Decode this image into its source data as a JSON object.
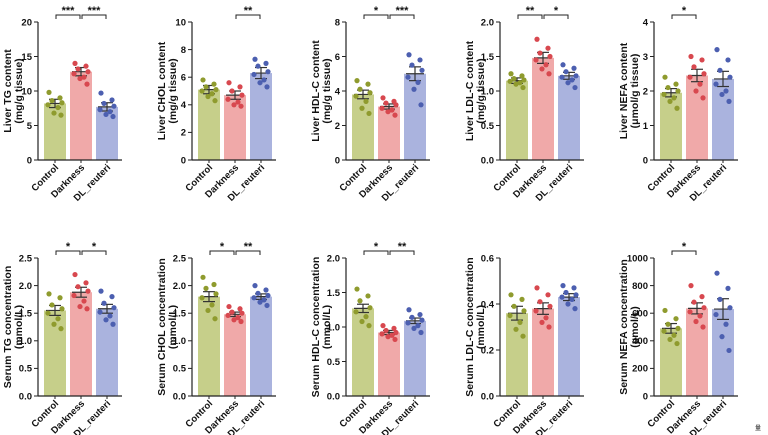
{
  "figure": {
    "corner_mark": "量"
  },
  "chart_data": [
    {
      "type": "bar",
      "ylabel_lines": [
        "Liver TG content",
        "(mg/g tissue)"
      ],
      "ylim": [
        0,
        20
      ],
      "yticks": [
        "0",
        "5",
        "10",
        "15",
        "20"
      ],
      "categories": [
        "Control",
        "Darkness",
        "DL_reuteri"
      ],
      "colors": [
        "#c6cf8a",
        "#f0a9a9",
        "#aab3de"
      ],
      "dot_colors": [
        "#8f9b2e",
        "#d8484f",
        "#4c5fb0"
      ],
      "values": [
        8.2,
        12.8,
        7.7
      ],
      "errors": [
        0.6,
        0.6,
        0.6
      ],
      "points": [
        [
          9.8,
          9.0,
          8.6,
          8.3,
          8.0,
          7.6,
          6.8,
          6.5
        ],
        [
          14.0,
          13.6,
          13.2,
          12.8,
          12.5,
          12.0,
          11.8,
          11.0
        ],
        [
          9.7,
          8.7,
          8.2,
          7.8,
          7.3,
          7.0,
          6.6,
          6.3
        ]
      ],
      "significance": [
        {
          "from": 0,
          "to": 1,
          "label": "***"
        },
        {
          "from": 1,
          "to": 2,
          "label": "***"
        }
      ]
    },
    {
      "type": "bar",
      "ylabel_lines": [
        "Liver CHOL content",
        "(mg/g tissue)"
      ],
      "ylim": [
        0,
        10
      ],
      "yticks": [
        "0",
        "2",
        "4",
        "6",
        "8",
        "10"
      ],
      "categories": [
        "Control",
        "Darkness",
        "DL_reuteri"
      ],
      "colors": [
        "#c6cf8a",
        "#f0a9a9",
        "#aab3de"
      ],
      "dot_colors": [
        "#8f9b2e",
        "#d8484f",
        "#4c5fb0"
      ],
      "values": [
        5.1,
        4.7,
        6.3
      ],
      "errors": [
        0.3,
        0.3,
        0.4
      ],
      "points": [
        [
          5.8,
          5.5,
          5.3,
          5.1,
          5.0,
          4.8,
          4.6,
          4.3
        ],
        [
          5.6,
          5.3,
          5.0,
          4.7,
          4.4,
          4.2,
          4.0,
          3.9
        ],
        [
          7.3,
          7.0,
          6.8,
          6.4,
          6.2,
          5.8,
          5.6,
          5.3
        ]
      ],
      "significance": [
        {
          "from": 1,
          "to": 2,
          "label": "**"
        }
      ]
    },
    {
      "type": "bar",
      "ylabel_lines": [
        "Liver HDL-C content",
        "(mg/g tissue)"
      ],
      "ylim": [
        0,
        8
      ],
      "yticks": [
        "0",
        "2",
        "4",
        "6",
        "8"
      ],
      "categories": [
        "Control",
        "Darkness",
        "DL_reuteri"
      ],
      "colors": [
        "#c6cf8a",
        "#f0a9a9",
        "#aab3de"
      ],
      "dot_colors": [
        "#8f9b2e",
        "#d8484f",
        "#4c5fb0"
      ],
      "values": [
        3.8,
        3.1,
        5.0
      ],
      "errors": [
        0.25,
        0.15,
        0.4
      ],
      "points": [
        [
          4.6,
          4.4,
          4.1,
          3.9,
          3.7,
          3.4,
          3.0,
          2.7
        ],
        [
          3.6,
          3.4,
          3.3,
          3.2,
          3.0,
          2.9,
          2.8,
          2.6
        ],
        [
          6.1,
          5.8,
          5.5,
          5.2,
          4.8,
          4.5,
          4.1,
          3.2
        ]
      ],
      "significance": [
        {
          "from": 0,
          "to": 1,
          "label": "*"
        },
        {
          "from": 1,
          "to": 2,
          "label": "***"
        }
      ]
    },
    {
      "type": "bar",
      "ylabel_lines": [
        "Liver LDL-C content",
        "(mg/g tissue)"
      ],
      "ylim": [
        0.0,
        2.0
      ],
      "yticks": [
        "0.0",
        "0.5",
        "1.0",
        "1.5",
        "2.0"
      ],
      "categories": [
        "Control",
        "Darkness",
        "DL_reuteri"
      ],
      "colors": [
        "#c6cf8a",
        "#f0a9a9",
        "#aab3de"
      ],
      "dot_colors": [
        "#8f9b2e",
        "#d8484f",
        "#4c5fb0"
      ],
      "values": [
        1.15,
        1.48,
        1.22
      ],
      "errors": [
        0.04,
        0.08,
        0.05
      ],
      "points": [
        [
          1.25,
          1.22,
          1.18,
          1.16,
          1.14,
          1.12,
          1.1,
          1.05
        ],
        [
          1.75,
          1.62,
          1.55,
          1.5,
          1.45,
          1.38,
          1.32,
          1.25
        ],
        [
          1.38,
          1.33,
          1.28,
          1.22,
          1.2,
          1.16,
          1.12,
          1.05
        ]
      ],
      "significance": [
        {
          "from": 0,
          "to": 1,
          "label": "**"
        },
        {
          "from": 1,
          "to": 2,
          "label": "*"
        }
      ]
    },
    {
      "type": "bar",
      "ylabel_lines": [
        "Liver NEFA content",
        "(μmol/g tissue)"
      ],
      "ylim": [
        0,
        4
      ],
      "yticks": [
        "0",
        "1",
        "2",
        "3",
        "4"
      ],
      "categories": [
        "Control",
        "Darkness",
        "DL_reuteri"
      ],
      "colors": [
        "#c6cf8a",
        "#f0a9a9",
        "#aab3de"
      ],
      "dot_colors": [
        "#8f9b2e",
        "#d8484f",
        "#4c5fb0"
      ],
      "values": [
        1.95,
        2.45,
        2.35
      ],
      "errors": [
        0.12,
        0.18,
        0.22
      ],
      "points": [
        [
          2.4,
          2.2,
          2.1,
          2.0,
          1.9,
          1.8,
          1.7,
          1.5
        ],
        [
          3.0,
          2.9,
          2.7,
          2.5,
          2.4,
          2.2,
          2.0,
          1.8
        ],
        [
          3.2,
          2.9,
          2.6,
          2.4,
          2.2,
          2.0,
          1.9,
          1.7
        ]
      ],
      "significance": [
        {
          "from": 0,
          "to": 1,
          "label": "*"
        }
      ]
    },
    {
      "type": "bar",
      "ylabel_lines": [
        "Serum TG concentration",
        "(mmol/L)"
      ],
      "ylim": [
        0.0,
        2.5
      ],
      "yticks": [
        "0.0",
        "0.5",
        "1.0",
        "1.5",
        "2.0",
        "2.5"
      ],
      "categories": [
        "Control",
        "Darkness",
        "DL_reuteri"
      ],
      "colors": [
        "#c6cf8a",
        "#f0a9a9",
        "#aab3de"
      ],
      "dot_colors": [
        "#8f9b2e",
        "#d8484f",
        "#4c5fb0"
      ],
      "values": [
        1.55,
        1.88,
        1.58
      ],
      "errors": [
        0.09,
        0.09,
        0.08
      ],
      "points": [
        [
          1.85,
          1.78,
          1.65,
          1.58,
          1.5,
          1.4,
          1.3,
          1.22
        ],
        [
          2.2,
          2.05,
          1.98,
          1.9,
          1.82,
          1.72,
          1.62,
          1.58
        ],
        [
          1.9,
          1.8,
          1.68,
          1.6,
          1.52,
          1.45,
          1.38,
          1.3
        ]
      ],
      "significance": [
        {
          "from": 0,
          "to": 1,
          "label": "*"
        },
        {
          "from": 1,
          "to": 2,
          "label": "*"
        }
      ]
    },
    {
      "type": "bar",
      "ylabel_lines": [
        "Serum CHOL concentration",
        "(mmol/L)"
      ],
      "ylim": [
        0.0,
        2.5
      ],
      "yticks": [
        "0.0",
        "0.5",
        "1.0",
        "1.5",
        "2.0",
        "2.5"
      ],
      "categories": [
        "Control",
        "Darkness",
        "DL_reuteri"
      ],
      "colors": [
        "#c6cf8a",
        "#f0a9a9",
        "#aab3de"
      ],
      "dot_colors": [
        "#8f9b2e",
        "#d8484f",
        "#4c5fb0"
      ],
      "values": [
        1.8,
        1.48,
        1.8
      ],
      "errors": [
        0.09,
        0.04,
        0.05
      ],
      "points": [
        [
          2.15,
          2.02,
          1.95,
          1.85,
          1.78,
          1.65,
          1.55,
          1.4
        ],
        [
          1.62,
          1.58,
          1.52,
          1.5,
          1.46,
          1.42,
          1.38,
          1.35
        ],
        [
          2.0,
          1.92,
          1.86,
          1.82,
          1.78,
          1.74,
          1.7,
          1.64
        ]
      ],
      "significance": [
        {
          "from": 0,
          "to": 1,
          "label": "*"
        },
        {
          "from": 1,
          "to": 2,
          "label": "**"
        }
      ]
    },
    {
      "type": "bar",
      "ylabel_lines": [
        "Serum HDL-C concentration",
        "(mmol/L)"
      ],
      "ylim": [
        0.0,
        2.0
      ],
      "yticks": [
        "0.0",
        "0.5",
        "1.0",
        "1.5",
        "2.0"
      ],
      "categories": [
        "Control",
        "Darkness",
        "DL_reuteri"
      ],
      "colors": [
        "#c6cf8a",
        "#f0a9a9",
        "#aab3de"
      ],
      "dot_colors": [
        "#8f9b2e",
        "#d8484f",
        "#4c5fb0"
      ],
      "values": [
        1.27,
        0.92,
        1.09
      ],
      "errors": [
        0.06,
        0.03,
        0.04
      ],
      "points": [
        [
          1.55,
          1.45,
          1.38,
          1.28,
          1.22,
          1.15,
          1.08,
          1.02
        ],
        [
          1.02,
          0.98,
          0.95,
          0.92,
          0.9,
          0.88,
          0.86,
          0.82
        ],
        [
          1.25,
          1.18,
          1.14,
          1.1,
          1.06,
          1.02,
          0.98,
          0.92
        ]
      ],
      "significance": [
        {
          "from": 0,
          "to": 1,
          "label": "*"
        },
        {
          "from": 1,
          "to": 2,
          "label": "**"
        }
      ]
    },
    {
      "type": "bar",
      "ylabel_lines": [
        "Serum LDL-C concentration",
        "(mmol/L)"
      ],
      "ylim": [
        0.0,
        0.6
      ],
      "yticks": [
        "0.0",
        "0.2",
        "0.4",
        "0.6"
      ],
      "categories": [
        "Control",
        "Darkness",
        "DL_reuteri"
      ],
      "colors": [
        "#c6cf8a",
        "#f0a9a9",
        "#aab3de"
      ],
      "dot_colors": [
        "#8f9b2e",
        "#d8484f",
        "#4c5fb0"
      ],
      "values": [
        0.36,
        0.38,
        0.43
      ],
      "errors": [
        0.03,
        0.025,
        0.015
      ],
      "points": [
        [
          0.44,
          0.42,
          0.39,
          0.37,
          0.35,
          0.32,
          0.29,
          0.26
        ],
        [
          0.47,
          0.44,
          0.41,
          0.39,
          0.37,
          0.34,
          0.32,
          0.3
        ],
        [
          0.48,
          0.47,
          0.45,
          0.44,
          0.43,
          0.42,
          0.4,
          0.38
        ]
      ],
      "significance": []
    },
    {
      "type": "bar",
      "ylabel_lines": [
        "Serum NEFA concentration",
        "(μmol/L)"
      ],
      "ylim": [
        0,
        1000
      ],
      "yticks": [
        "0",
        "200",
        "400",
        "600",
        "800",
        "1000"
      ],
      "categories": [
        "Control",
        "Darkness",
        "DL_reuteri"
      ],
      "colors": [
        "#c6cf8a",
        "#f0a9a9",
        "#aab3de"
      ],
      "dot_colors": [
        "#8f9b2e",
        "#d8484f",
        "#4c5fb0"
      ],
      "values": [
        490,
        635,
        630
      ],
      "errors": [
        35,
        40,
        75
      ],
      "points": [
        [
          620,
          560,
          520,
          490,
          470,
          440,
          410,
          380
        ],
        [
          800,
          720,
          680,
          640,
          610,
          580,
          540,
          500
        ],
        [
          890,
          780,
          700,
          640,
          590,
          520,
          430,
          330
        ]
      ],
      "significance": [
        {
          "from": 0,
          "to": 1,
          "label": "*"
        }
      ]
    }
  ]
}
